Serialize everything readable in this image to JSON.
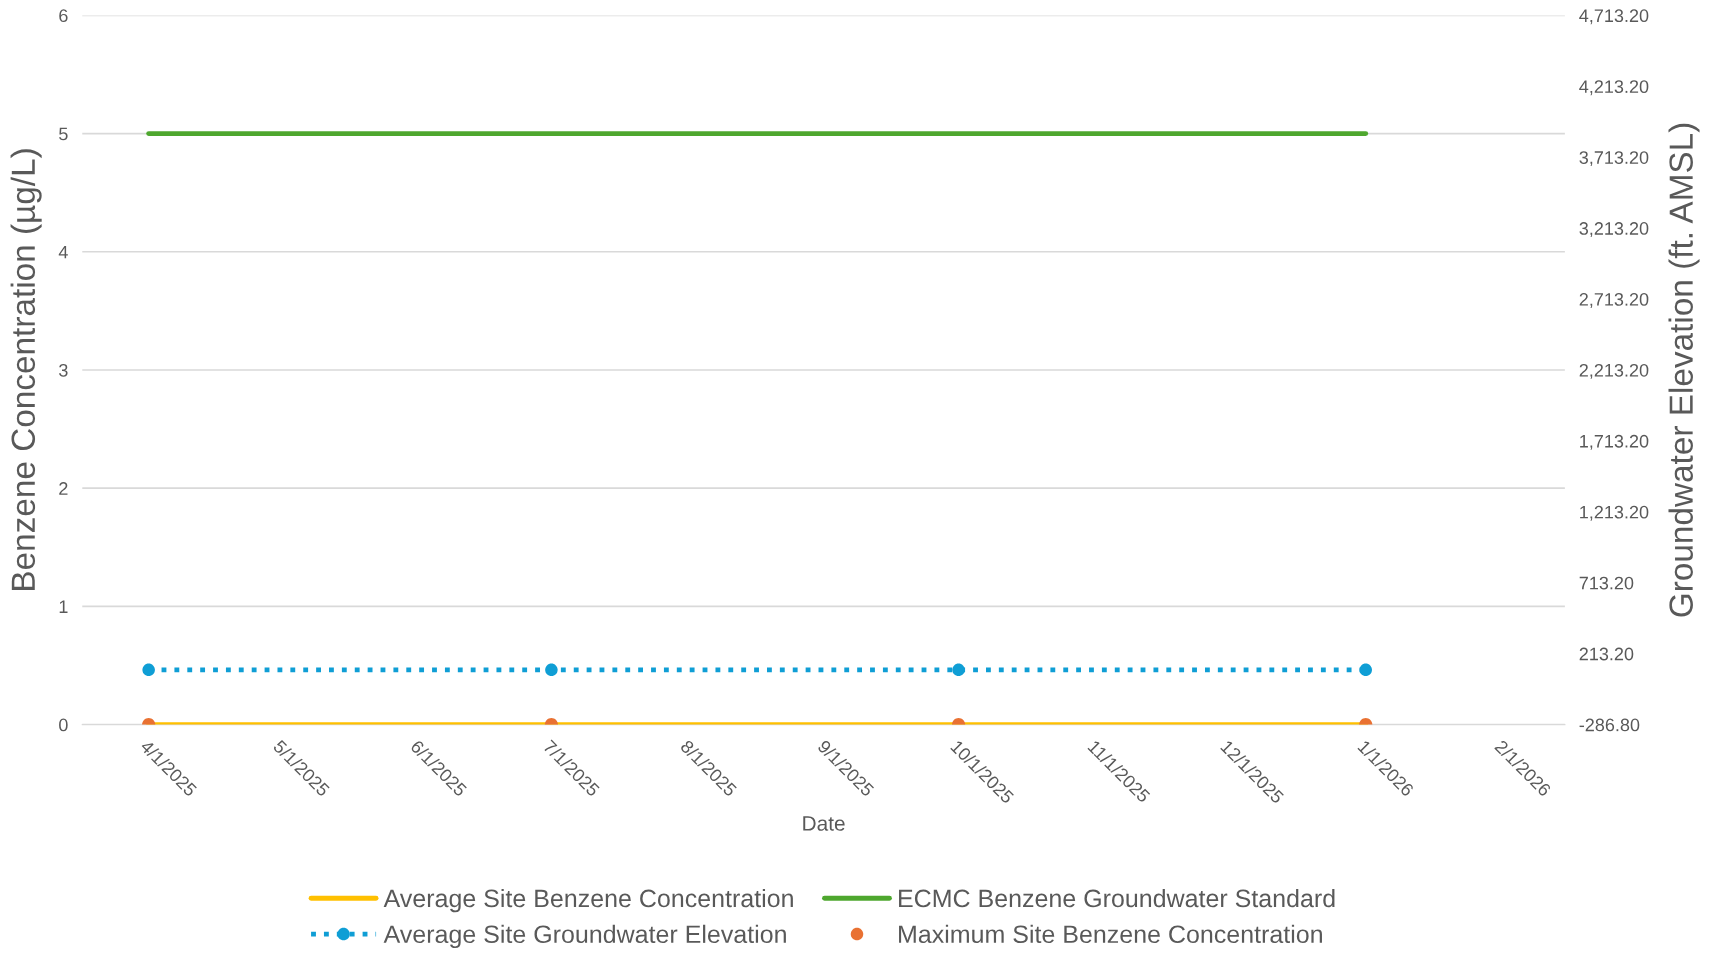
{
  "chart_data": {
    "type": "line",
    "xlabel": "Date",
    "ylabel": "Benzene Concentration (µg/L)",
    "y2label": "Groundwater Elevation (ft. AMSL)",
    "x": [
      "2025-04-01",
      "2025-07-01",
      "2025-10-01",
      "2026-01-01"
    ],
    "series": [
      {
        "name": "Average Site Benzene Concentration",
        "color": "#ffc000",
        "values": [
          0,
          0,
          0,
          0
        ],
        "marker": "none",
        "line_style": "solid"
      },
      {
        "name": "Average Site Groundwater Elevation",
        "axis": "y2",
        "color": "#0f9ed5",
        "values": [
          99,
          99,
          99,
          99
        ],
        "marker": "circle",
        "line_style": "dotted"
      },
      {
        "name": "ECMC Benzene Groundwater Standard",
        "color": "#4ea72e",
        "values": [
          5,
          5,
          5,
          5
        ],
        "marker": "none",
        "line_style": "solid"
      },
      {
        "name": "Maximum Site Benzene Concentration",
        "type": "scatter",
        "color": "#e97132",
        "values": [
          0,
          0,
          0,
          0
        ],
        "marker": "circle"
      }
    ],
    "xlim": [
      "2025-03-17",
      "2026-02-15"
    ],
    "xticks": [
      {
        "value": "2025-04-01",
        "label": "4/1/2025"
      },
      {
        "value": "2025-05-01",
        "label": "5/1/2025"
      },
      {
        "value": "2025-06-01",
        "label": "6/1/2025"
      },
      {
        "value": "2025-07-01",
        "label": "7/1/2025"
      },
      {
        "value": "2025-08-01",
        "label": "8/1/2025"
      },
      {
        "value": "2025-09-01",
        "label": "9/1/2025"
      },
      {
        "value": "2025-10-01",
        "label": "10/1/2025"
      },
      {
        "value": "2025-11-01",
        "label": "11/1/2025"
      },
      {
        "value": "2025-12-01",
        "label": "12/1/2025"
      },
      {
        "value": "2026-01-01",
        "label": "1/1/2026"
      },
      {
        "value": "2026-02-01",
        "label": "2/1/2026"
      }
    ],
    "ylim": [
      0,
      6
    ],
    "yticks": [
      0,
      1,
      2,
      3,
      4,
      5,
      6
    ],
    "y2lim": [
      -286.8,
      4713.2
    ],
    "y2ticks": [
      {
        "value": -286.8,
        "label": "-286.80"
      },
      {
        "value": 213.2,
        "label": "213.20"
      },
      {
        "value": 713.2,
        "label": "713.20"
      },
      {
        "value": 1213.2,
        "label": "1,213.20"
      },
      {
        "value": 1713.2,
        "label": "1,713.20"
      },
      {
        "value": 2213.2,
        "label": "2,213.20"
      },
      {
        "value": 2713.2,
        "label": "2,713.20"
      },
      {
        "value": 3213.2,
        "label": "3,213.20"
      },
      {
        "value": 3713.2,
        "label": "3,713.20"
      },
      {
        "value": 4213.2,
        "label": "4,213.20"
      },
      {
        "value": 4713.2,
        "label": "4,713.20"
      }
    ],
    "grid": "y",
    "legend": "bottom"
  }
}
